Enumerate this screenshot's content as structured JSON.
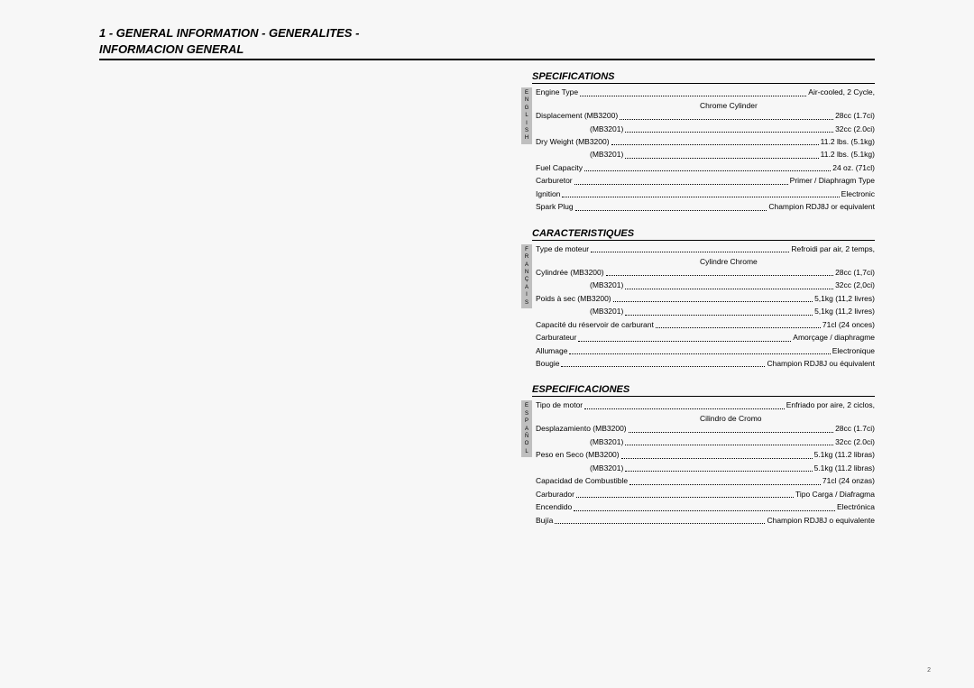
{
  "page_number": "2",
  "title_line1": "1 - GENERAL INFORMATION - GENERALITES -",
  "title_line2": "INFORMACION GENERAL",
  "sections": {
    "english": {
      "heading": "SPECIFICATIONS",
      "lang_letters": [
        "E",
        "N",
        "G",
        "L",
        "I",
        "S",
        "H"
      ],
      "rows": [
        {
          "label": "Engine Type",
          "value": "Air-cooled, 2 Cycle,",
          "value2": "Chrome Cylinder"
        },
        {
          "label": "Displacement (MB3200)",
          "value": "28cc (1.7ci)"
        },
        {
          "sublabel": "(MB3201)",
          "value": "32cc (2.0ci)"
        },
        {
          "label": "Dry Weight (MB3200)",
          "value": "11.2 lbs. (5.1kg)"
        },
        {
          "sublabel": "(MB3201)",
          "value": "11.2 lbs. (5.1kg)"
        },
        {
          "label": "Fuel Capacity",
          "value": "24 oz. (71cl)"
        },
        {
          "label": "Carburetor",
          "value": "Primer / Diaphragm Type"
        },
        {
          "label": "Ignition",
          "value": "Electronic"
        },
        {
          "label": "Spark Plug",
          "value": "Champion RDJ8J or equivalent"
        }
      ]
    },
    "french": {
      "heading": "CARACTERISTIQUES",
      "lang_letters": [
        "F",
        "R",
        "A",
        "N",
        "Ç",
        "A",
        "I",
        "S"
      ],
      "rows": [
        {
          "label": "Type de moteur",
          "value": "Refroidi par air, 2 temps,",
          "value2": "Cylindre Chrome"
        },
        {
          "label": "Cylindrée (MB3200)",
          "value": "28cc (1,7ci)"
        },
        {
          "sublabel": "(MB3201)",
          "value": "32cc (2,0ci)"
        },
        {
          "label": "Poids à sec (MB3200)",
          "value": "5,1kg (11,2 livres)"
        },
        {
          "sublabel": "(MB3201)",
          "value": "5,1kg (11,2 livres)"
        },
        {
          "label": "Capacité du réservoir de carburant",
          "value": "71cl (24 onces)"
        },
        {
          "label": "Carburateur",
          "value": "Amorçage / diaphragme"
        },
        {
          "label": "Allumage",
          "value": "Electronique"
        },
        {
          "label": "Bougie",
          "value": "Champion RDJ8J ou équivalent"
        }
      ]
    },
    "spanish": {
      "heading": "ESPECIFICACIONES",
      "lang_letters": [
        "E",
        "S",
        "P",
        "A",
        "Ñ",
        "O",
        "L"
      ],
      "rows": [
        {
          "label": "Tipo de motor",
          "value": "Enfriado por aire, 2 ciclos,",
          "value2": "Cilindro de Cromo"
        },
        {
          "label": "Desplazamiento (MB3200)",
          "value": "28cc (1.7ci)"
        },
        {
          "sublabel": "(MB3201)",
          "value": "32cc (2.0ci)"
        },
        {
          "label": "Peso en Seco (MB3200)",
          "value": "5.1kg (11.2 libras)"
        },
        {
          "sublabel": "(MB3201)",
          "value": "5.1kg (11.2 libras)"
        },
        {
          "label": "Capacidad de Combustible",
          "value": "71cl (24 onzas)"
        },
        {
          "label": "Carburador",
          "value": "Tipo Carga / Diafragma"
        },
        {
          "label": "Encendido",
          "value": "Electrónica"
        },
        {
          "label": "Bujía",
          "value": "Champion RDJ8J o equivalente"
        }
      ]
    }
  }
}
